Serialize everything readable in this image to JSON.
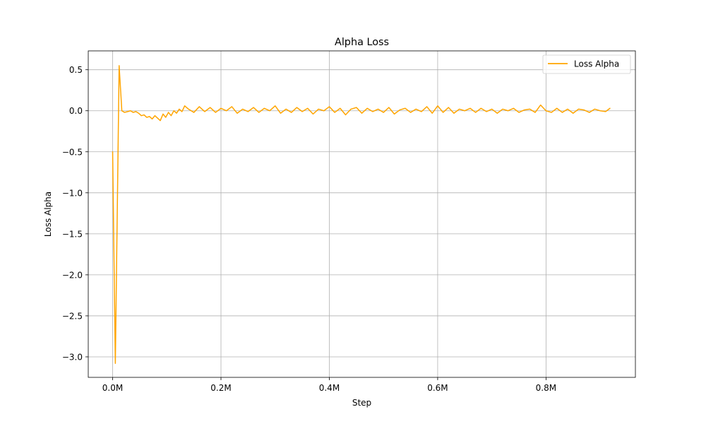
{
  "chart_data": {
    "type": "line",
    "title": "Alpha Loss",
    "xlabel": "Step",
    "ylabel": "Loss Alpha",
    "xlim": [
      -45000,
      965000
    ],
    "ylim": [
      -3.25,
      0.73
    ],
    "xticks": [
      0,
      200000,
      400000,
      600000,
      800000
    ],
    "xtick_labels": [
      "0.0M",
      "0.2M",
      "0.4M",
      "0.6M",
      "0.8M"
    ],
    "yticks": [
      0.5,
      0.0,
      -0.5,
      -1.0,
      -1.5,
      -2.0,
      -2.5,
      -3.0
    ],
    "ytick_labels": [
      "0.5",
      "0.0",
      "−0.5",
      "−1.0",
      "−1.5",
      "−2.0",
      "−2.5",
      "−3.0"
    ],
    "grid": true,
    "legend_position": "upper right",
    "series": [
      {
        "name": "Loss Alpha",
        "color": "#ffa500",
        "x": [
          0,
          5000,
          12000,
          17000,
          22000,
          28000,
          33000,
          38000,
          43000,
          48000,
          53000,
          58000,
          63000,
          68000,
          73000,
          78000,
          83000,
          88000,
          93000,
          98000,
          103000,
          108000,
          113000,
          118000,
          123000,
          128000,
          133000,
          140000,
          150000,
          160000,
          170000,
          180000,
          190000,
          200000,
          210000,
          220000,
          230000,
          240000,
          250000,
          260000,
          270000,
          280000,
          290000,
          300000,
          310000,
          320000,
          330000,
          340000,
          350000,
          360000,
          370000,
          380000,
          390000,
          400000,
          410000,
          420000,
          430000,
          440000,
          450000,
          460000,
          470000,
          480000,
          490000,
          500000,
          510000,
          520000,
          530000,
          540000,
          550000,
          560000,
          570000,
          580000,
          590000,
          600000,
          610000,
          620000,
          630000,
          640000,
          650000,
          660000,
          670000,
          680000,
          690000,
          700000,
          710000,
          720000,
          730000,
          740000,
          750000,
          760000,
          770000,
          780000,
          790000,
          800000,
          810000,
          820000,
          830000,
          840000,
          850000,
          860000,
          870000,
          880000,
          890000,
          900000,
          910000,
          918000
        ],
        "y": [
          -0.5,
          -3.08,
          0.55,
          0.0,
          -0.02,
          -0.01,
          0.0,
          -0.02,
          -0.01,
          -0.03,
          -0.06,
          -0.05,
          -0.08,
          -0.07,
          -0.1,
          -0.06,
          -0.09,
          -0.12,
          -0.04,
          -0.08,
          -0.02,
          -0.06,
          0.0,
          -0.03,
          0.02,
          -0.01,
          0.06,
          0.02,
          -0.02,
          0.05,
          -0.01,
          0.04,
          -0.02,
          0.03,
          0.0,
          0.05,
          -0.03,
          0.02,
          -0.01,
          0.04,
          -0.02,
          0.03,
          0.0,
          0.06,
          -0.03,
          0.02,
          -0.02,
          0.04,
          -0.01,
          0.03,
          -0.04,
          0.02,
          0.0,
          0.05,
          -0.02,
          0.03,
          -0.05,
          0.02,
          0.04,
          -0.03,
          0.03,
          -0.01,
          0.02,
          -0.02,
          0.04,
          -0.04,
          0.01,
          0.03,
          -0.02,
          0.02,
          -0.01,
          0.05,
          -0.03,
          0.06,
          -0.02,
          0.04,
          -0.03,
          0.02,
          0.0,
          0.03,
          -0.02,
          0.03,
          -0.01,
          0.02,
          -0.03,
          0.02,
          0.0,
          0.03,
          -0.02,
          0.01,
          0.02,
          -0.02,
          0.07,
          0.0,
          -0.02,
          0.03,
          -0.02,
          0.02,
          -0.03,
          0.02,
          0.01,
          -0.02,
          0.02,
          0.0,
          -0.01,
          0.03
        ]
      }
    ]
  }
}
